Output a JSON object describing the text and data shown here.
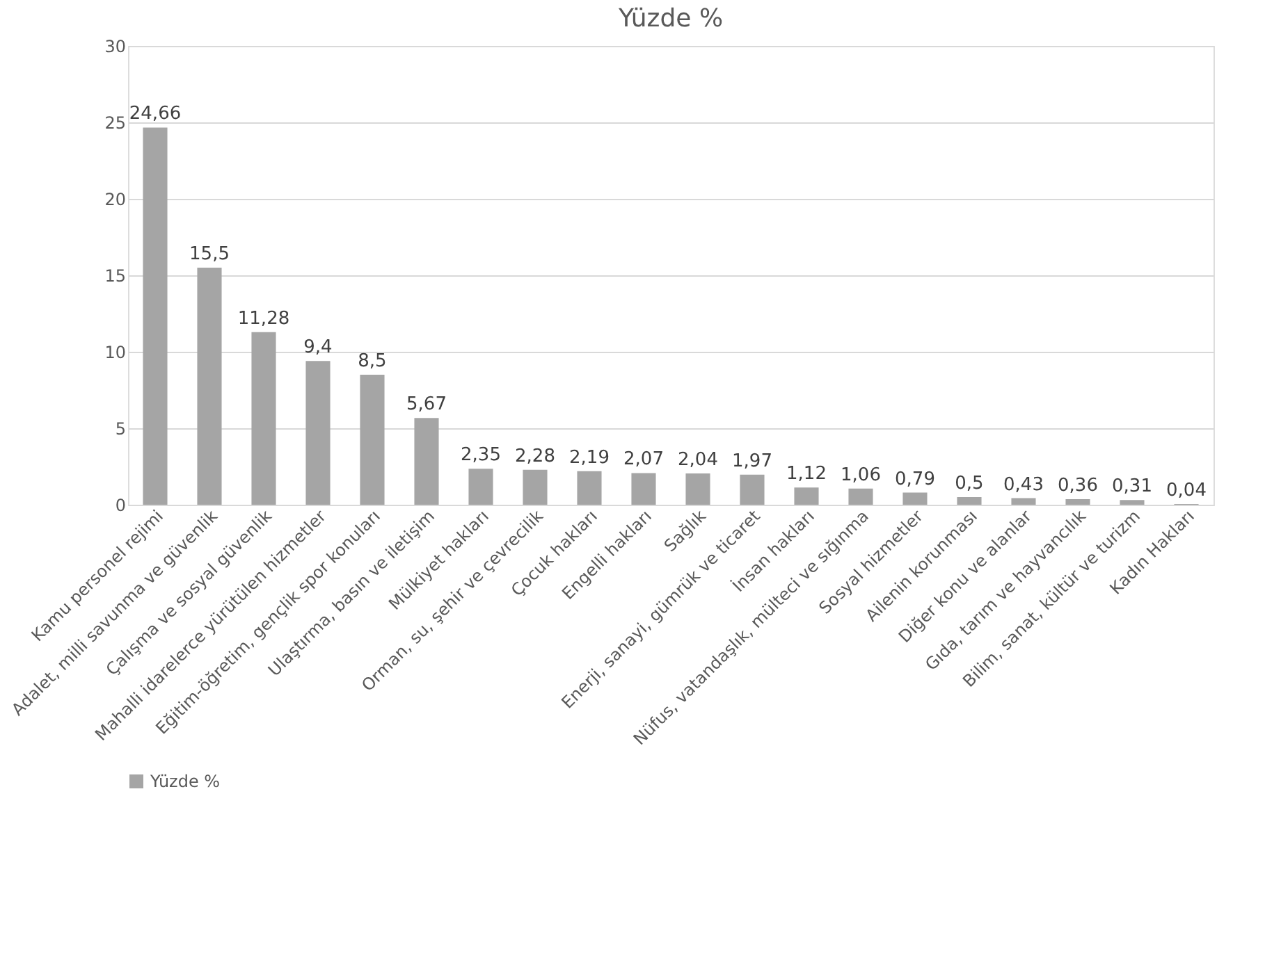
{
  "chart_data": {
    "type": "bar",
    "title": "Yüzde %",
    "categories": [
      "Kamu personel rejimi",
      "Adalet, milli savunma ve güvenlik",
      "Çalışma ve sosyal güvenlik",
      "Mahalli idarelerce yürütülen hizmetler",
      "Eğitim-öğretim, gençlik spor konuları",
      "Ulaştırma, basın ve iletişim",
      "Mülkiyet hakları",
      "Orman, su, şehir ve çevrecilik",
      "Çocuk hakları",
      "Engelli hakları",
      "Sağlık",
      "Enerji, sanayi, gümrük ve ticaret",
      "İnsan hakları",
      "Nüfus, vatandaşlık, mülteci ve sığınma",
      "Sosyal hizmetler",
      "Ailenin korunması",
      "Diğer konu ve alanlar",
      "Gıda, tarım ve hayvancılık",
      "Bilim, sanat, kültür ve turizm",
      "Kadın Hakları"
    ],
    "series": [
      {
        "name": "Yüzde %",
        "color": "#a5a5a5",
        "values": [
          24.66,
          15.5,
          11.28,
          9.4,
          8.5,
          5.67,
          2.35,
          2.28,
          2.19,
          2.07,
          2.04,
          1.97,
          1.12,
          1.06,
          0.79,
          0.5,
          0.43,
          0.36,
          0.31,
          0.04
        ],
        "value_labels": [
          "24,66",
          "15,5",
          "11,28",
          "9,4",
          "8,5",
          "5,67",
          "2,35",
          "2,28",
          "2,19",
          "2,07",
          "2,04",
          "1,97",
          "1,12",
          "1,06",
          "0,79",
          "0,5",
          "0,43",
          "0,36",
          "0,31",
          "0,04"
        ]
      }
    ],
    "ylim": [
      0,
      30
    ],
    "yticks": [
      0,
      5,
      10,
      15,
      20,
      25,
      30
    ],
    "grid": "y",
    "legend": "bottom"
  }
}
